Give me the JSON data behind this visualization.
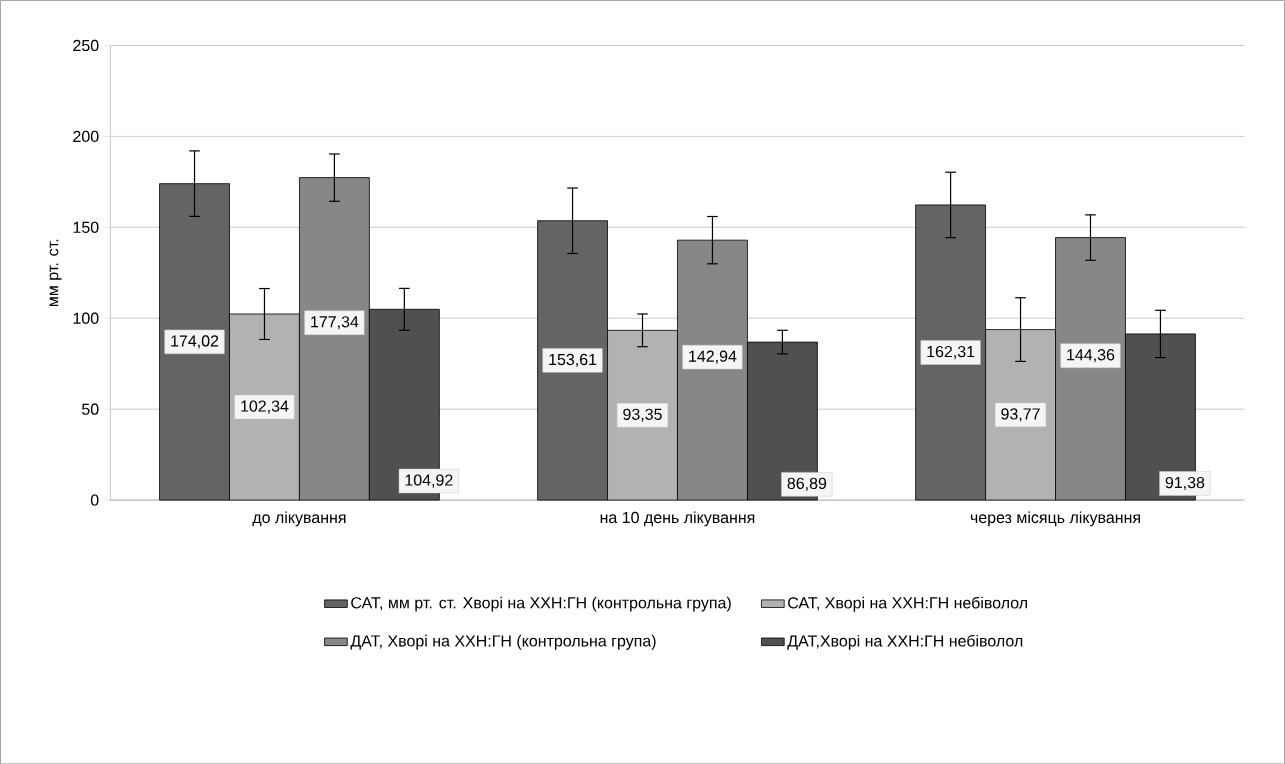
{
  "chart_data": {
    "type": "bar",
    "ylabel": "мм рт. ст.",
    "categories": [
      "до лікування",
      "на 10 день  лікування",
      "через місяць лікування"
    ],
    "series": [
      {
        "name": "САТ, мм рт. ст. Хворі на ХХН:ГН (контрольна група)",
        "color": "#646464",
        "values": [
          174.02,
          153.61,
          162.31
        ],
        "errors": [
          18,
          18,
          18
        ],
        "value_labels": [
          "174,02",
          "153,61",
          "162,31"
        ]
      },
      {
        "name": "САТ, Хворі на ХХН:ГН небіволол",
        "color": "#b2b2b2",
        "values": [
          102.34,
          93.35,
          93.77
        ],
        "errors": [
          14,
          9,
          17.5
        ],
        "value_labels": [
          "102,34",
          "93,35",
          "93,77"
        ]
      },
      {
        "name": "ДАТ, Хворі на ХХН:ГН (контрольна група)",
        "color": "#878787",
        "values": [
          177.34,
          142.94,
          144.36
        ],
        "errors": [
          13,
          13,
          12.5
        ],
        "value_labels": [
          "177,34",
          "142,94",
          "144,36"
        ]
      },
      {
        "name": "ДАТ,Хворі на ХХН:ГН небіволол",
        "color": "#505050",
        "values": [
          104.92,
          86.89,
          91.38
        ],
        "errors": [
          11.5,
          6.5,
          13
        ],
        "value_labels": [
          "104,92",
          "86,89",
          "91,38"
        ]
      }
    ],
    "ylim": [
      0,
      250
    ],
    "yticks": [
      0,
      50,
      100,
      150,
      200,
      250
    ],
    "grid": "y",
    "legend": "bottom"
  }
}
